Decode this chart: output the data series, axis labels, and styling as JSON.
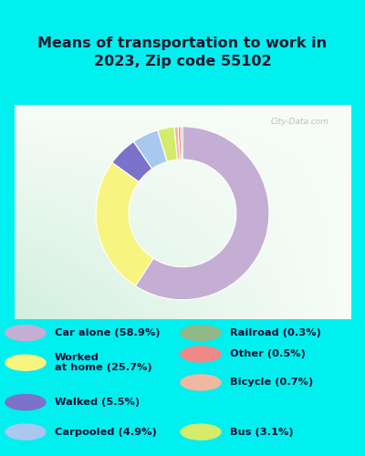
{
  "title": "Means of transportation to work in\n2023, Zip code 55102",
  "title_fontsize": 11.5,
  "bg_color": "#00EFEF",
  "chart_border_color": "#00EFEF",
  "chart_bg_color": "#e8f5ec",
  "labels": [
    "Car alone",
    "Worked at home",
    "Walked",
    "Carpooled",
    "Bus",
    "Bicycle",
    "Other",
    "Railroad"
  ],
  "values": [
    58.9,
    25.7,
    5.5,
    4.9,
    3.1,
    0.7,
    0.5,
    0.3
  ],
  "colors": [
    "#c5aed4",
    "#f7f580",
    "#7b72cc",
    "#a8c8f0",
    "#d4ec6a",
    "#f0b8a0",
    "#f08888",
    "#90b888"
  ],
  "legend_left_labels": [
    "Car alone (58.9%)",
    "Worked\nat home (25.7%)",
    "Walked (5.5%)",
    "Carpooled (4.9%)"
  ],
  "legend_left_colors": [
    "#c5aed4",
    "#f7f580",
    "#7b72cc",
    "#a8c8f0"
  ],
  "legend_right_labels": [
    "Railroad (0.3%)",
    "Other (0.5%)",
    "Bicycle (0.7%)",
    "Bus (3.1%)"
  ],
  "legend_right_colors": [
    "#90b888",
    "#f08888",
    "#f0b8a0",
    "#d4ec6a"
  ],
  "watermark": "City-Data.com",
  "donut_width": 0.38
}
